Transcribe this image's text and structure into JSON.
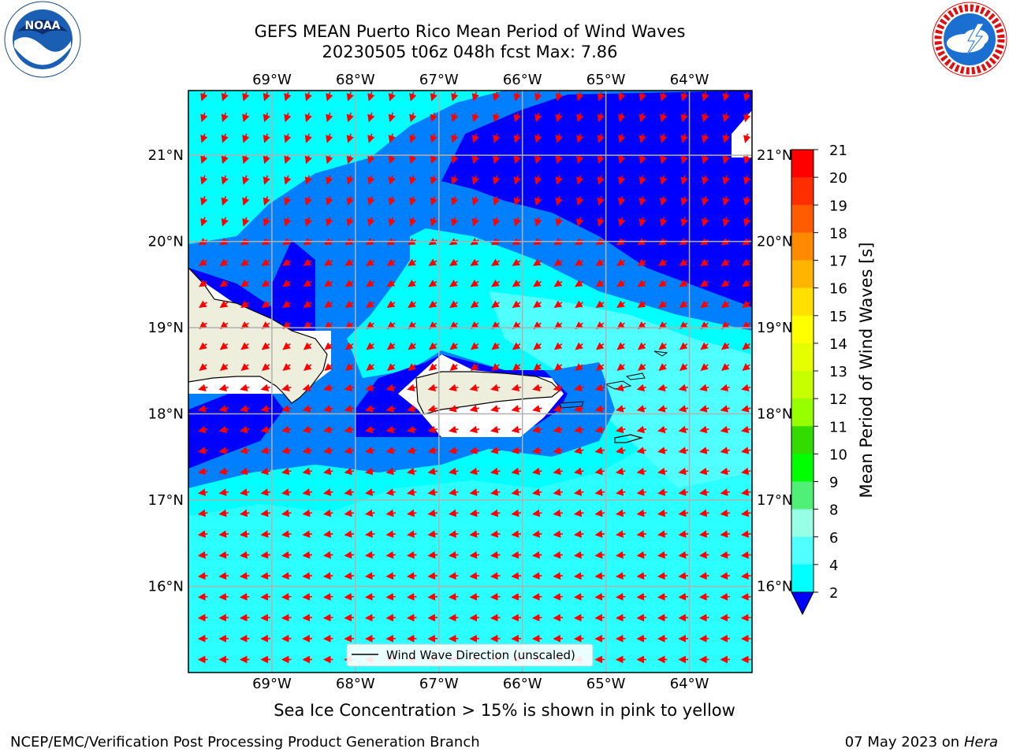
{
  "title_line1": "GEFS MEAN Puerto Rico Mean Period of Wind Waves",
  "title_line2": "20230505 t06z 048h fcst   Max: 7.86",
  "lon_labels": [
    "69°W",
    "68°W",
    "67°W",
    "66°W",
    "65°W",
    "64°W"
  ],
  "lat_labels": [
    "21°N",
    "20°N",
    "19°N",
    "18°N",
    "17°N",
    "16°N"
  ],
  "legend_label": "Wind Wave Direction (unscaled)",
  "colorbar": {
    "label": "Mean Period of Wind Waves [s]",
    "ticks": [
      "21",
      "20",
      "19",
      "18",
      "17",
      "16",
      "15",
      "14",
      "13",
      "12",
      "11",
      "10",
      "9",
      "8",
      "6",
      "4",
      "2"
    ],
    "colors": [
      "#ff0000",
      "#ff2e00",
      "#ff5c00",
      "#ff8a00",
      "#ffb400",
      "#ffe000",
      "#ffff00",
      "#e6ff00",
      "#c8ff00",
      "#96ff00",
      "#32dc00",
      "#00ff00",
      "#50f078",
      "#96ffe6",
      "#50ffff",
      "#00ffff",
      "#0080ff"
    ],
    "extend_color": "#0000ff"
  },
  "subtitle": "Sea Ice Concentration > 15% is shown in pink to yellow",
  "footer_left": "NCEP/EMC/Verification Post Processing Product Generation Branch",
  "footer_date": "07 May 2023 on",
  "footer_host": "Hera",
  "logos": {
    "noaa_text": "NOAA",
    "noaa_ring": "NATIONAL OCEANIC AND ATMOSPHERIC ADMINISTRATION · U.S. DEPARTMENT OF COMMERCE",
    "nws_ring": "NATIONAL WEATHER SERVICE"
  },
  "map": {
    "extent": {
      "lon_min": -70.0,
      "lon_max": -63.25,
      "lat_min": 15.0,
      "lat_max": 21.75
    },
    "gridlines": true,
    "arrow_color": "#ff0000",
    "land_color": "#eeeedc",
    "field_colors": {
      "lt4": "#0080ff",
      "lt2": "#0000ff",
      "4to6": "#00ffff",
      "6to8": "#50ffff"
    }
  }
}
